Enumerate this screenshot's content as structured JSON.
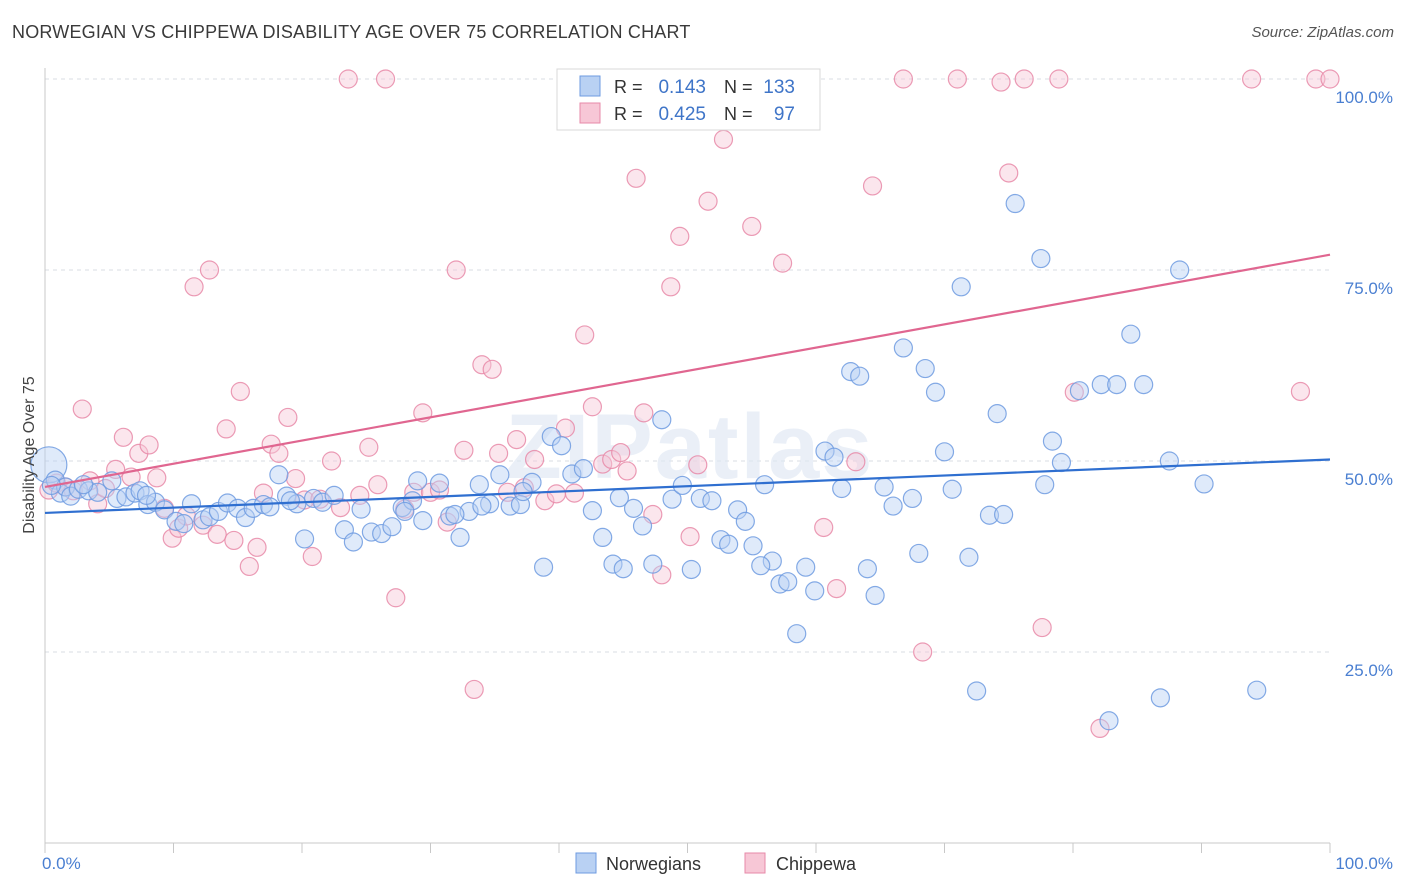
{
  "title": "NORWEGIAN VS CHIPPEWA DISABILITY AGE OVER 75 CORRELATION CHART",
  "source": "Source: ZipAtlas.com",
  "watermark": "ZIPatlas",
  "legend": {
    "rows": [
      {
        "r_label": "R =",
        "r_value": "0.143",
        "n_label": "N =",
        "n_value": "133",
        "color": "#6e9be0",
        "fill": "#b9d1f3"
      },
      {
        "r_label": "R =",
        "r_value": "0.425",
        "n_label": "N =",
        "n_value": "97",
        "color": "#e78aa8",
        "fill": "#f7c7d6"
      }
    ]
  },
  "chart_data": {
    "type": "scatter",
    "title": "NORWEGIAN VS CHIPPEWA DISABILITY AGE OVER 75 CORRELATION CHART",
    "ylabel": "Disability Age Over 75",
    "xlim": [
      0,
      100
    ],
    "ylim": [
      0,
      100
    ],
    "x_tick_labels": [
      "0.0%",
      "100.0%"
    ],
    "y_ticks": [
      {
        "value": 25,
        "label": "25.0%"
      },
      {
        "value": 50,
        "label": "50.0%"
      },
      {
        "value": 75,
        "label": "75.0%"
      },
      {
        "value": 100,
        "label": "100.0%"
      }
    ],
    "grid": true,
    "legend_position": "top-center",
    "series": [
      {
        "name": "Norwegians",
        "color": "#6e9be0",
        "fill": "#b9d1f3",
        "line_color": "#2f6fd0",
        "trend": [
          [
            0,
            43.2
          ],
          [
            100,
            50.2
          ]
        ],
        "points": [
          [
            0.3,
            49.5
          ],
          [
            0.8,
            47.5
          ],
          [
            1.2,
            45.8
          ],
          [
            1.6,
            46.6
          ],
          [
            2.0,
            45.4
          ],
          [
            2.6,
            46.3
          ],
          [
            3.4,
            46.1
          ],
          [
            4.1,
            45.9
          ],
          [
            5.2,
            47.4
          ],
          [
            5.6,
            45.1
          ],
          [
            6.3,
            45.3
          ],
          [
            7.0,
            45.8
          ],
          [
            7.4,
            46.1
          ],
          [
            8.0,
            44.3
          ],
          [
            8.6,
            44.6
          ],
          [
            9.3,
            43.6
          ],
          [
            10.2,
            42.1
          ],
          [
            11.4,
            44.4
          ],
          [
            12.3,
            42.3
          ],
          [
            12.8,
            42.7
          ],
          [
            13.5,
            43.4
          ],
          [
            14.2,
            44.5
          ],
          [
            15.0,
            43.8
          ],
          [
            15.6,
            42.6
          ],
          [
            16.2,
            43.8
          ],
          [
            17.0,
            44.3
          ],
          [
            17.5,
            44.0
          ],
          [
            18.2,
            48.2
          ],
          [
            18.8,
            45.4
          ],
          [
            19.6,
            44.4
          ],
          [
            20.2,
            39.8
          ],
          [
            20.9,
            45.1
          ],
          [
            21.6,
            44.6
          ],
          [
            22.5,
            45.5
          ],
          [
            23.3,
            41.0
          ],
          [
            24.0,
            39.4
          ],
          [
            24.6,
            43.7
          ],
          [
            25.4,
            40.7
          ],
          [
            26.2,
            40.5
          ],
          [
            27.0,
            41.4
          ],
          [
            27.8,
            43.9
          ],
          [
            28.6,
            44.8
          ],
          [
            29.4,
            42.2
          ],
          [
            29.0,
            47.4
          ],
          [
            30.7,
            47.1
          ],
          [
            31.5,
            42.8
          ],
          [
            32.3,
            40.0
          ],
          [
            33.0,
            43.4
          ],
          [
            33.8,
            46.9
          ],
          [
            34.6,
            44.4
          ],
          [
            35.4,
            48.2
          ],
          [
            36.2,
            44.1
          ],
          [
            37.0,
            44.3
          ],
          [
            37.9,
            47.2
          ],
          [
            38.8,
            36.1
          ],
          [
            39.4,
            53.2
          ],
          [
            40.2,
            52.0
          ],
          [
            41.0,
            48.3
          ],
          [
            41.9,
            49.0
          ],
          [
            42.6,
            43.5
          ],
          [
            43.4,
            40.0
          ],
          [
            44.2,
            36.5
          ],
          [
            45.0,
            35.9
          ],
          [
            45.8,
            43.8
          ],
          [
            46.5,
            41.5
          ],
          [
            47.3,
            36.5
          ],
          [
            48.0,
            55.4
          ],
          [
            48.8,
            45.0
          ],
          [
            49.6,
            46.8
          ],
          [
            50.3,
            35.8
          ],
          [
            51.0,
            45.1
          ],
          [
            51.9,
            44.8
          ],
          [
            52.6,
            39.7
          ],
          [
            53.2,
            39.1
          ],
          [
            53.9,
            43.6
          ],
          [
            54.5,
            42.1
          ],
          [
            55.1,
            38.9
          ],
          [
            56.0,
            46.9
          ],
          [
            56.6,
            36.9
          ],
          [
            57.2,
            33.9
          ],
          [
            57.8,
            34.2
          ],
          [
            58.5,
            27.4
          ],
          [
            59.2,
            36.1
          ],
          [
            59.9,
            33.0
          ],
          [
            60.7,
            51.3
          ],
          [
            61.4,
            50.5
          ],
          [
            62.0,
            46.4
          ],
          [
            62.7,
            61.7
          ],
          [
            63.4,
            61.1
          ],
          [
            64.0,
            35.9
          ],
          [
            64.6,
            32.4
          ],
          [
            65.3,
            46.6
          ],
          [
            66.0,
            44.1
          ],
          [
            66.8,
            64.8
          ],
          [
            67.5,
            45.1
          ],
          [
            68.0,
            37.9
          ],
          [
            68.5,
            62.1
          ],
          [
            69.3,
            59.0
          ],
          [
            70.0,
            51.2
          ],
          [
            70.6,
            46.3
          ],
          [
            71.3,
            72.8
          ],
          [
            71.9,
            37.4
          ],
          [
            72.5,
            19.9
          ],
          [
            73.5,
            42.9
          ],
          [
            74.1,
            56.2
          ],
          [
            74.6,
            43.0
          ],
          [
            75.5,
            83.7
          ],
          [
            77.5,
            76.5
          ],
          [
            77.8,
            46.9
          ],
          [
            78.4,
            52.6
          ],
          [
            79.1,
            49.8
          ],
          [
            80.5,
            59.2
          ],
          [
            82.2,
            60.0
          ],
          [
            82.8,
            16.0
          ],
          [
            83.4,
            60.0
          ],
          [
            84.5,
            66.6
          ],
          [
            85.5,
            60.0
          ],
          [
            86.8,
            19.0
          ],
          [
            87.5,
            50.0
          ],
          [
            88.3,
            75.0
          ],
          [
            90.2,
            47.0
          ],
          [
            94.3,
            20.0
          ],
          [
            0.5,
            46.8
          ],
          [
            3.0,
            46.9
          ],
          [
            7.9,
            45.5
          ],
          [
            10.8,
            41.8
          ],
          [
            19.1,
            44.8
          ],
          [
            28.0,
            43.4
          ],
          [
            31.9,
            43.0
          ],
          [
            34.0,
            44.1
          ],
          [
            37.2,
            46.0
          ],
          [
            44.7,
            45.2
          ],
          [
            55.7,
            36.3
          ]
        ]
      },
      {
        "name": "Chippewa",
        "color": "#e78aa8",
        "fill": "#f7c7d6",
        "line_color": "#e06690",
        "trend": [
          [
            0,
            46.6
          ],
          [
            100,
            77.0
          ]
        ],
        "points": [
          [
            0.3,
            46.2
          ],
          [
            0.9,
            47.1
          ],
          [
            1.6,
            46.6
          ],
          [
            2.2,
            46.1
          ],
          [
            2.9,
            56.8
          ],
          [
            3.5,
            47.4
          ],
          [
            4.1,
            44.4
          ],
          [
            4.7,
            46.4
          ],
          [
            5.5,
            48.9
          ],
          [
            6.1,
            53.1
          ],
          [
            6.7,
            47.9
          ],
          [
            7.3,
            51.0
          ],
          [
            8.1,
            52.1
          ],
          [
            8.7,
            47.8
          ],
          [
            9.3,
            43.8
          ],
          [
            9.9,
            39.9
          ],
          [
            10.4,
            41.2
          ],
          [
            11.0,
            42.8
          ],
          [
            11.6,
            72.8
          ],
          [
            12.3,
            41.6
          ],
          [
            12.8,
            75.0
          ],
          [
            13.4,
            40.4
          ],
          [
            14.1,
            54.2
          ],
          [
            14.7,
            39.6
          ],
          [
            15.2,
            59.1
          ],
          [
            15.9,
            36.2
          ],
          [
            16.5,
            38.7
          ],
          [
            17.0,
            45.8
          ],
          [
            17.6,
            52.2
          ],
          [
            18.2,
            51.0
          ],
          [
            18.9,
            55.7
          ],
          [
            19.5,
            47.7
          ],
          [
            20.2,
            44.9
          ],
          [
            20.8,
            37.5
          ],
          [
            21.4,
            45.0
          ],
          [
            22.3,
            50.0
          ],
          [
            23.0,
            43.9
          ],
          [
            23.6,
            100.0
          ],
          [
            24.5,
            45.5
          ],
          [
            25.2,
            51.8
          ],
          [
            25.9,
            46.9
          ],
          [
            26.5,
            100.0
          ],
          [
            27.3,
            32.1
          ],
          [
            28.0,
            43.7
          ],
          [
            28.7,
            45.9
          ],
          [
            29.4,
            56.3
          ],
          [
            30.0,
            45.9
          ],
          [
            30.7,
            46.2
          ],
          [
            31.3,
            42.0
          ],
          [
            32.0,
            75.0
          ],
          [
            32.6,
            51.4
          ],
          [
            33.4,
            20.1
          ],
          [
            34.0,
            62.6
          ],
          [
            34.8,
            62.0
          ],
          [
            35.3,
            51.0
          ],
          [
            36.0,
            45.9
          ],
          [
            36.7,
            52.8
          ],
          [
            37.3,
            46.5
          ],
          [
            38.1,
            50.2
          ],
          [
            38.9,
            44.8
          ],
          [
            39.8,
            45.7
          ],
          [
            40.5,
            54.3
          ],
          [
            41.2,
            45.8
          ],
          [
            42.0,
            66.5
          ],
          [
            42.6,
            57.1
          ],
          [
            43.4,
            49.6
          ],
          [
            44.1,
            50.2
          ],
          [
            44.8,
            51.1
          ],
          [
            45.3,
            48.7
          ],
          [
            46.0,
            87.0
          ],
          [
            46.6,
            56.3
          ],
          [
            47.3,
            43.0
          ],
          [
            48.0,
            35.1
          ],
          [
            48.7,
            72.8
          ],
          [
            49.4,
            79.4
          ],
          [
            50.2,
            40.1
          ],
          [
            50.8,
            49.5
          ],
          [
            51.6,
            84.0
          ],
          [
            52.8,
            92.1
          ],
          [
            53.6,
            100.0
          ],
          [
            54.2,
            100.0
          ],
          [
            55.0,
            80.7
          ],
          [
            56.2,
            100.0
          ],
          [
            57.4,
            75.9
          ],
          [
            59.3,
            100.0
          ],
          [
            60.6,
            41.3
          ],
          [
            61.6,
            33.3
          ],
          [
            63.1,
            49.9
          ],
          [
            64.4,
            86.0
          ],
          [
            66.8,
            100.0
          ],
          [
            68.3,
            25.0
          ],
          [
            71.0,
            100.0
          ],
          [
            74.4,
            99.6
          ],
          [
            75.0,
            87.7
          ],
          [
            76.2,
            100.0
          ],
          [
            77.6,
            28.2
          ],
          [
            78.9,
            100.0
          ],
          [
            80.1,
            59.0
          ],
          [
            82.1,
            15.0
          ],
          [
            97.7,
            59.1
          ],
          [
            98.9,
            100.0
          ],
          [
            100.0,
            100.0
          ],
          [
            93.9,
            100.0
          ]
        ]
      }
    ]
  },
  "bottom_legend": [
    {
      "label": "Norwegians",
      "color": "#6e9be0",
      "fill": "#b9d1f3"
    },
    {
      "label": "Chippewa",
      "color": "#e78aa8",
      "fill": "#f7c7d6"
    }
  ]
}
